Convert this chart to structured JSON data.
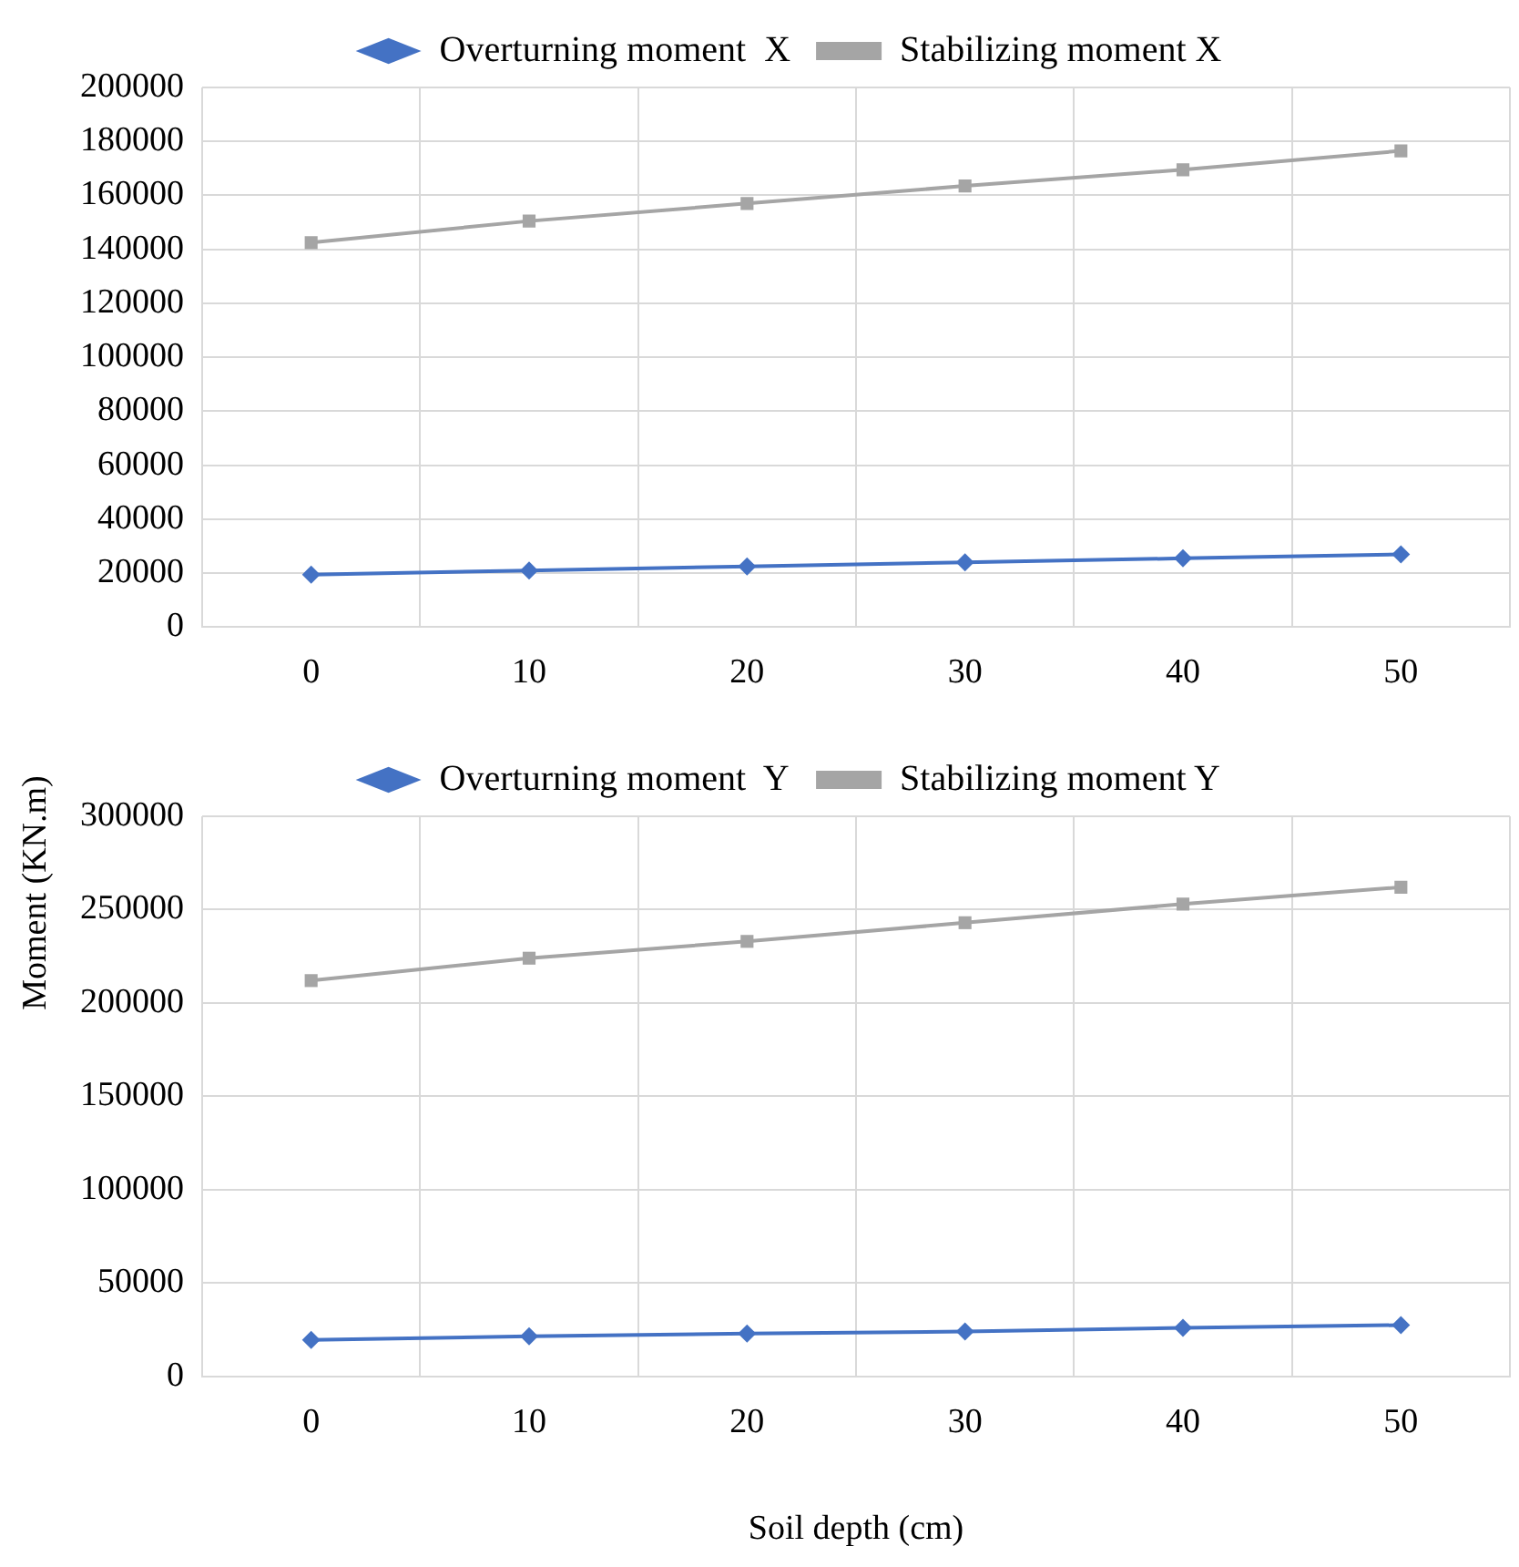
{
  "chart_data": [
    {
      "type": "line",
      "ylabel": "Moment (KN.m)",
      "categories": [
        "0",
        "10",
        "20",
        "30",
        "40",
        "50"
      ],
      "series": [
        {
          "name": "Overturning moment  X",
          "color": "#4472c4",
          "marker": "diamond",
          "values": [
            19500,
            21000,
            22500,
            24000,
            25500,
            27000
          ]
        },
        {
          "name": "Stabilizing moment X",
          "color": "#a5a5a5",
          "marker": "square",
          "values": [
            142500,
            150500,
            157000,
            163500,
            169500,
            176500
          ]
        }
      ],
      "ylim": [
        0,
        200000
      ],
      "yticks": [
        0,
        20000,
        40000,
        60000,
        80000,
        100000,
        120000,
        140000,
        160000,
        180000,
        200000
      ],
      "grid": true,
      "legend": "top"
    },
    {
      "type": "line",
      "xlabel": "Soil depth (cm)",
      "categories": [
        "0",
        "10",
        "20",
        "30",
        "40",
        "50"
      ],
      "series": [
        {
          "name": "Overturning moment  Y",
          "color": "#4472c4",
          "marker": "diamond",
          "values": [
            19500,
            21500,
            23000,
            24000,
            26000,
            27500
          ]
        },
        {
          "name": "Stabilizing moment Y",
          "color": "#a5a5a5",
          "marker": "square",
          "values": [
            212000,
            224000,
            233000,
            243000,
            253000,
            262000
          ]
        }
      ],
      "ylim": [
        0,
        300000
      ],
      "yticks": [
        0,
        50000,
        100000,
        150000,
        200000,
        250000,
        300000
      ],
      "grid": true,
      "legend": "top"
    }
  ]
}
